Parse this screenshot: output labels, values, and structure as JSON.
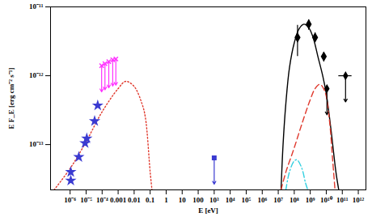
{
  "chart_data": {
    "type": "scatter",
    "x_label": "E [eV]",
    "y_label": "E F_E [erg cm⁻² s⁻¹]",
    "log": true,
    "grid": false,
    "xlim": [
      6e-08,
      3000000000000.0
    ],
    "ylim": [
      2.2e-14,
      1e-11
    ],
    "xticks": [
      {
        "value": 1e-06,
        "label": "10⁻⁶"
      },
      {
        "value": 1e-05,
        "label": "10⁻⁵"
      },
      {
        "value": 0.0001,
        "label": "10⁻⁴"
      },
      0.001,
      0.01,
      0.1,
      1,
      10,
      100,
      {
        "value": 1000.0,
        "label": "10³"
      },
      {
        "value": 10000.0,
        "label": "10⁴"
      },
      {
        "value": 100000.0,
        "label": "10⁵"
      },
      {
        "value": 1000000.0,
        "label": "10⁶"
      },
      {
        "value": 10000000.0,
        "label": "10⁷"
      },
      {
        "value": 100000000.0,
        "label": "10⁸"
      },
      {
        "value": 1000000000.0,
        "label": "10⁹"
      },
      {
        "value": 10000000000.0,
        "label": "10¹⁰"
      },
      {
        "value": 100000000000.0,
        "label": "10¹¹"
      },
      {
        "value": 1000000000000.0,
        "label": "10¹²"
      }
    ],
    "yticks": [
      {
        "value": 1e-13,
        "label": "10⁻¹³"
      },
      {
        "value": 1e-12,
        "label": "10⁻¹²"
      },
      {
        "value": 1e-11,
        "label": "10⁻¹¹"
      }
    ],
    "series": [
      {
        "type": "line",
        "line_style": "dotted",
        "color": "#e03a2e",
        "x": [
          1e-07,
          1e-06,
          1e-05,
          0.0001,
          0.001,
          0.003,
          0.01,
          0.03,
          0.05,
          0.1,
          0.13
        ],
        "values": [
          2.2e-14,
          4.5e-14,
          1.1e-13,
          3e-13,
          6.5e-13,
          8.3e-13,
          7e-13,
          4e-13,
          2.5e-13,
          4e-14,
          2.2e-14
        ]
      },
      {
        "type": "scatter",
        "marker": "star",
        "color": "#3b3bd1",
        "x": [
          1.1e-06,
          1.1e-06,
          3.5e-06,
          8.6e-06,
          1.1e-05,
          3.4e-05,
          5.3e-05
        ],
        "values": [
          4e-14,
          3e-14,
          6.6e-14,
          1.05e-13,
          1.23e-13,
          2.2e-13,
          3.7e-13
        ]
      },
      {
        "type": "upper_limit",
        "marker": "times",
        "color": "#ff33ff",
        "x": [
          9.3e-05,
          0.00015,
          0.00026,
          0.00046,
          0.00072
        ],
        "values": [
          1.4e-12,
          1.5e-12,
          1.6e-12,
          1.7e-12,
          1.75e-12
        ]
      },
      {
        "type": "upper_limit",
        "marker": "square",
        "color": "#3b3bd1",
        "x": [
          1000.0
        ],
        "values": [
          6.4e-14
        ]
      },
      {
        "type": "line",
        "line_style": "solid",
        "color": "#000000",
        "x": [
          15000000.0,
          20000000.0,
          30000000.0,
          50000000.0,
          100000000.0,
          200000000.0,
          400000000.0,
          800000000.0,
          1500000000.0,
          3000000000.0,
          6000000000.0,
          10000000000.0,
          20000000000.0,
          40000000000.0,
          60000000000.0
        ],
        "values": [
          2.2e-14,
          1e-13,
          4e-13,
          1.3e-12,
          3e-12,
          4.8e-12,
          5.6e-12,
          5e-12,
          3.6e-12,
          1.9e-12,
          1e-12,
          5.5e-13,
          1.6e-13,
          4e-14,
          2.2e-14
        ]
      },
      {
        "type": "line",
        "line_style": "dashed",
        "color": "#e03a2e",
        "x": [
          15000000.0,
          30000000.0,
          100000000.0,
          300000000.0,
          1000000000.0,
          2000000000.0,
          4000000000.0,
          8000000000.0,
          15000000000.0,
          25000000000.0,
          35000000000.0
        ],
        "values": [
          2.2e-14,
          4e-14,
          9e-14,
          2e-13,
          4.5e-13,
          6.5e-13,
          7.5e-13,
          6e-13,
          2.5e-13,
          6e-14,
          2.2e-14
        ]
      },
      {
        "type": "line",
        "line_style": "dashdot",
        "color": "#33d0e0",
        "x": [
          30000000.0,
          50000000.0,
          100000000.0,
          150000000.0,
          300000000.0,
          500000000.0,
          700000000.0
        ],
        "values": [
          2.2e-14,
          4e-14,
          5.8e-14,
          6e-14,
          4.5e-14,
          2.8e-14,
          2.2e-14
        ]
      },
      {
        "type": "scatter",
        "marker": "diamond",
        "color": "#000000",
        "x": [
          160000000.0,
          800000000.0,
          2000000000.0,
          7000000000.0
        ],
        "values": [
          3.6e-12,
          5.6e-12,
          3.6e-12,
          1.9e-12
        ],
        "error_low": [
          1.9e-12,
          4.6e-12,
          3.1e-12,
          1.6e-12
        ],
        "error_high": [
          5.4e-12,
          6.5e-12,
          4.2e-12,
          2.2e-12
        ]
      },
      {
        "type": "upper_limit",
        "marker": "diamond",
        "color": "#000000",
        "x": [
          11000000000.0,
          160000000000.0
        ],
        "values": [
          6.5e-13,
          1e-12
        ],
        "x_low": [
          11000000000.0,
          60000000000.0
        ],
        "x_high": [
          11000000000.0,
          400000000000.0
        ]
      }
    ]
  }
}
